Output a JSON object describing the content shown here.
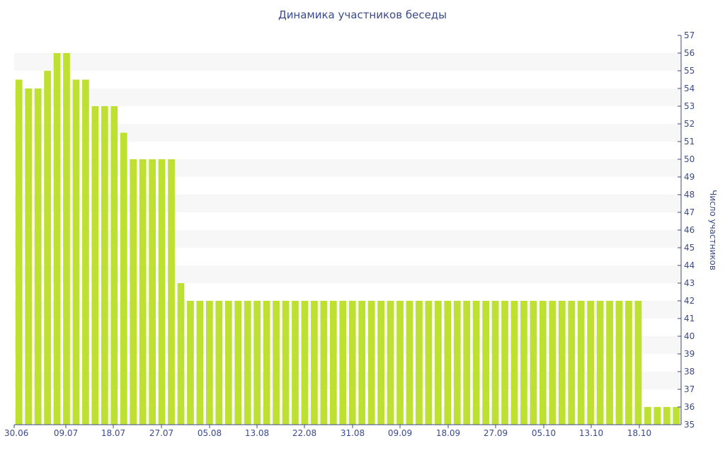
{
  "chart_data": {
    "type": "bar",
    "title": "Динамика участников беседы",
    "xlabel": "",
    "ylabel": "Число участников",
    "ylim": [
      35,
      57
    ],
    "y_ticks": [
      35,
      36,
      37,
      38,
      39,
      40,
      41,
      42,
      43,
      44,
      45,
      46,
      47,
      48,
      49,
      50,
      51,
      52,
      53,
      54,
      55,
      56,
      57
    ],
    "x_tick_labels": [
      "30.06",
      "09.07",
      "18.07",
      "27.07",
      "05.08",
      "13.08",
      "22.08",
      "31.08",
      "09.09",
      "18.09",
      "27.09",
      "05.10",
      "13.10",
      "18.10"
    ],
    "y_axis_position": "right",
    "grid": "alternating horizontal bands",
    "colors": {
      "bar": "#bde031",
      "band": "#f7f7f7",
      "text": "#3b4a8c",
      "axis": "#3b4a8c"
    },
    "values": [
      54.5,
      54,
      54,
      55,
      56,
      56,
      54.5,
      54.5,
      53,
      53,
      53,
      51.5,
      50,
      50,
      50,
      50,
      50,
      43,
      42,
      42,
      42,
      42,
      42,
      42,
      42,
      42,
      42,
      42,
      42,
      42,
      42,
      42,
      42,
      42,
      42,
      42,
      42,
      42,
      42,
      42,
      42,
      42,
      42,
      42,
      42,
      42,
      42,
      42,
      42,
      42,
      42,
      42,
      42,
      42,
      42,
      42,
      42,
      42,
      42,
      42,
      42,
      42,
      42,
      42,
      42,
      42,
      36,
      36,
      36,
      36
    ]
  }
}
